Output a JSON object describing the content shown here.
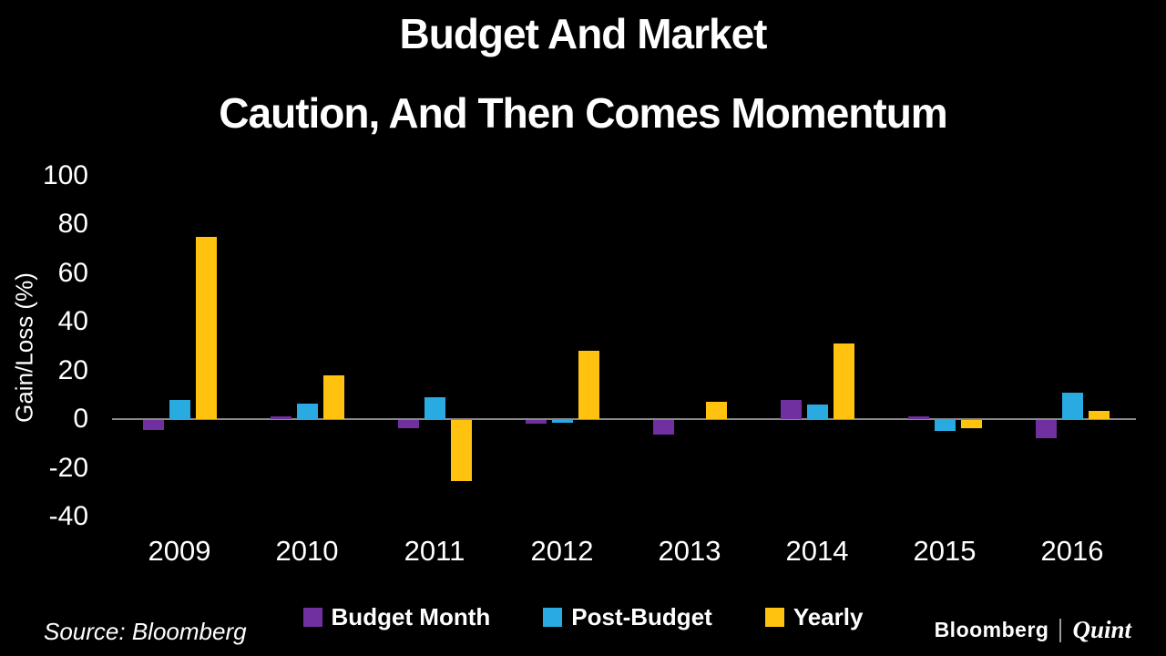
{
  "title": {
    "line1": "Budget And Market",
    "line2": "Caution, And Then Comes Momentum"
  },
  "chart_data": {
    "type": "bar",
    "title": "Budget And Market Caution, And Then Comes Momentum",
    "categories": [
      "2009",
      "2010",
      "2011",
      "2012",
      "2013",
      "2014",
      "2015",
      "2016"
    ],
    "series": [
      {
        "name": "Budget Month",
        "color": "#7030A0",
        "values": [
          -4,
          1,
          -3.5,
          -1.5,
          -6,
          8,
          1,
          -7.5
        ]
      },
      {
        "name": "Post-Budget",
        "color": "#29ABE2",
        "values": [
          8,
          6.5,
          9,
          -1,
          0,
          6,
          -4.5,
          11
        ]
      },
      {
        "name": "Yearly",
        "color": "#FFC20E",
        "values": [
          75,
          18,
          -25,
          28,
          7,
          31,
          -3.5,
          3.5
        ]
      }
    ],
    "xlabel": "",
    "ylabel": "Gain/Loss (%)",
    "ylim": [
      -40,
      100
    ],
    "yticks": [
      100,
      80,
      60,
      40,
      20,
      0,
      -20,
      -40
    ],
    "grid": false,
    "legend_position": "bottom",
    "background_color": "#000000",
    "axis_line_color": "#8a8a8a",
    "text_color": "#ffffff"
  },
  "footer": {
    "source": "Source: Bloomberg",
    "logo": {
      "part1": "Bloomberg",
      "separator": "|",
      "part2": "Quint"
    }
  }
}
